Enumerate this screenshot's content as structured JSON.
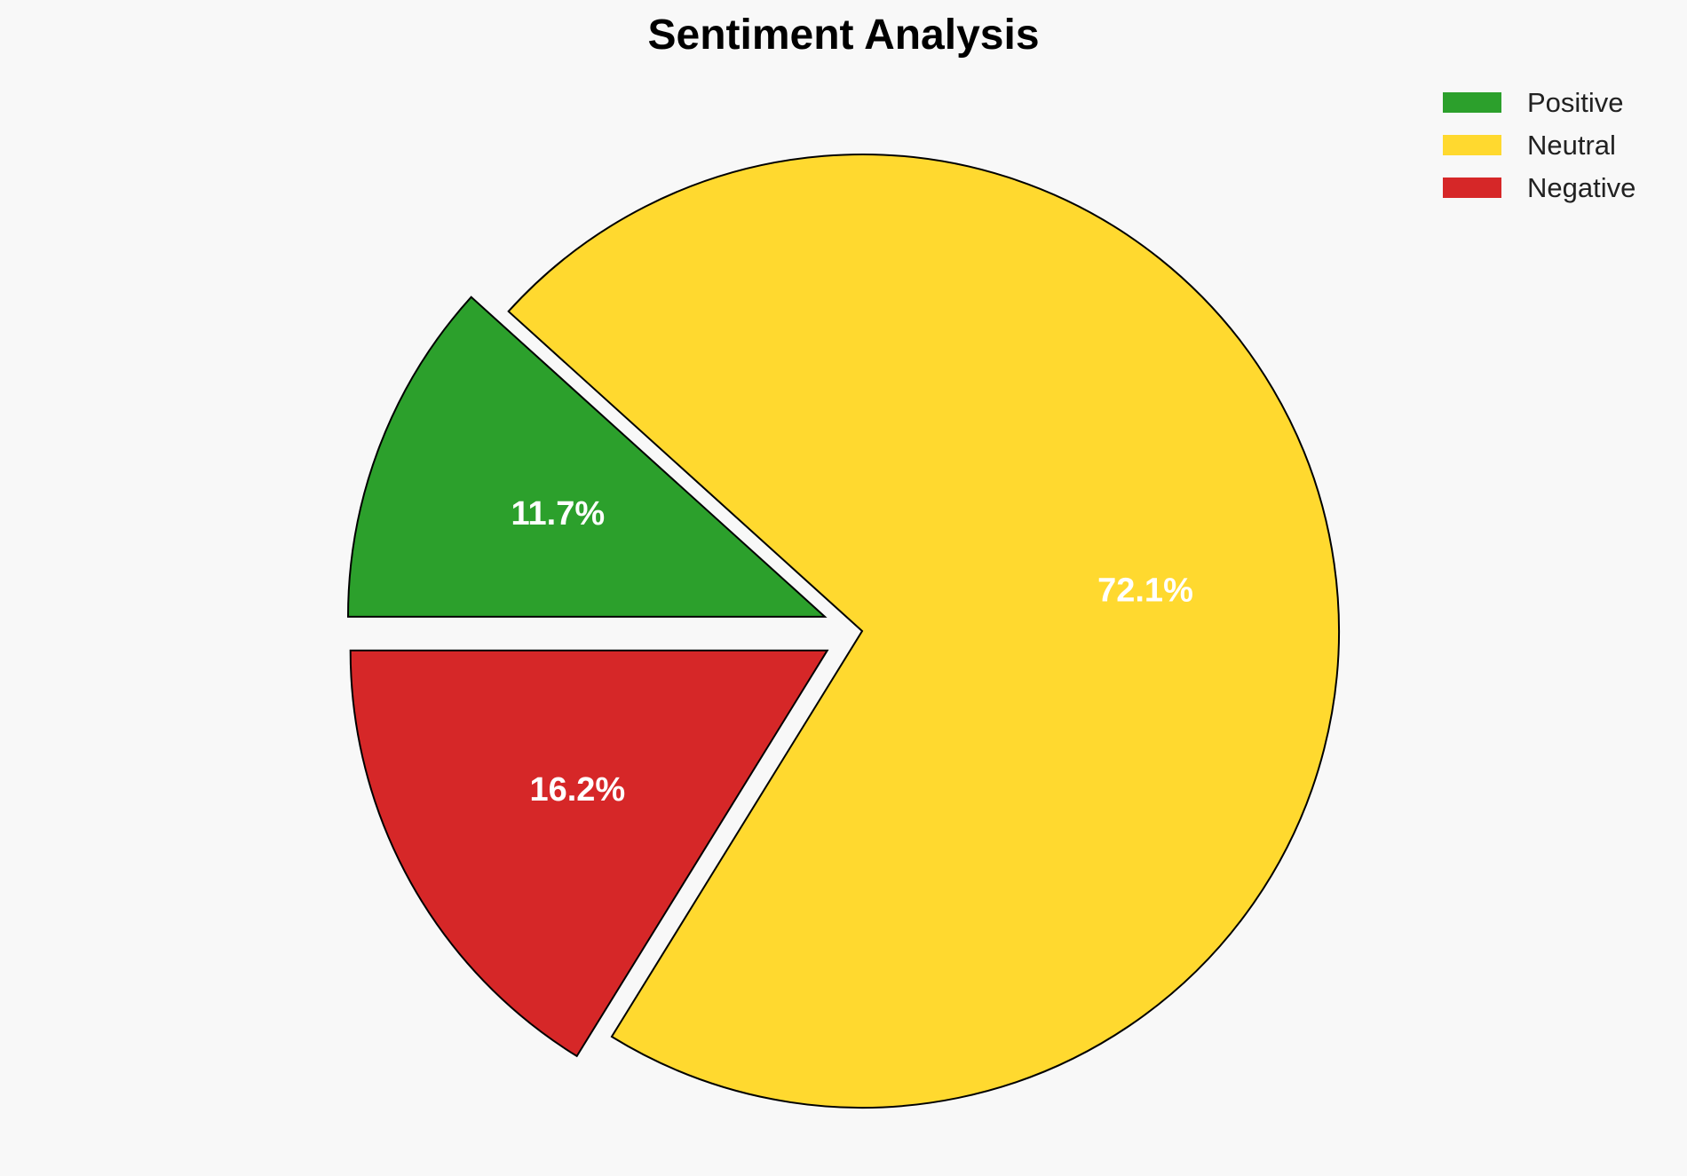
{
  "chart_data": {
    "type": "pie",
    "title": "Sentiment Analysis",
    "categories": [
      "Positive",
      "Neutral",
      "Negative"
    ],
    "values": [
      11.7,
      72.1,
      16.2
    ],
    "labels": [
      "11.7%",
      "72.1%",
      "16.2%"
    ],
    "colors": [
      "#2ca02c",
      "#ffd92f",
      "#d62728"
    ],
    "exploded": [
      true,
      false,
      true
    ],
    "legend_position": "top-right",
    "start": "positive slice begins at the 9 o'clock position, slices run clockwise"
  }
}
